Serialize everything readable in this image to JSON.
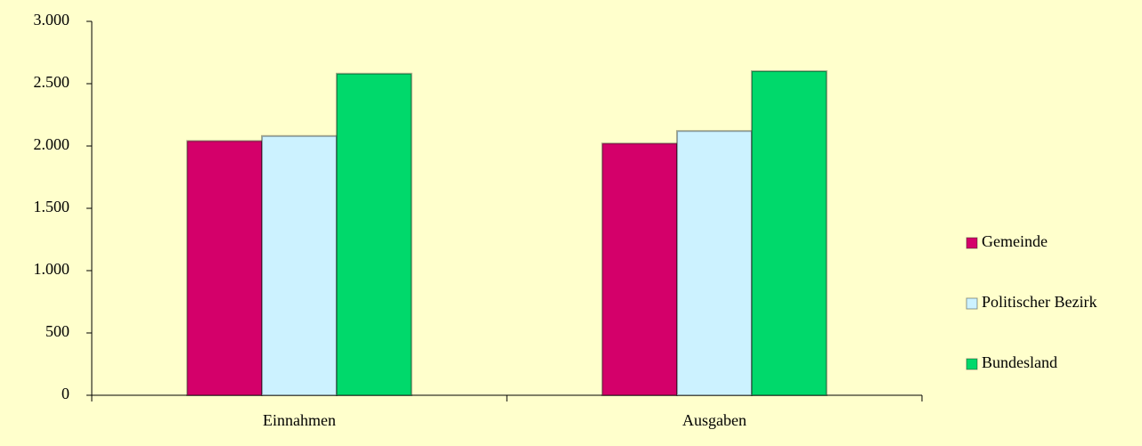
{
  "chart_data": {
    "type": "bar",
    "categories": [
      "Einnahmen",
      "Ausgaben"
    ],
    "series": [
      {
        "name": "Gemeinde",
        "color": "#D4006A",
        "values": [
          2040,
          2020
        ]
      },
      {
        "name": "Politischer Bezirk",
        "color": "#CCF2FF",
        "values": [
          2080,
          2120
        ]
      },
      {
        "name": "Bundesland",
        "color": "#00D96B",
        "values": [
          2580,
          2600
        ]
      }
    ],
    "ylim": [
      0,
      3000
    ],
    "yticks": [
      0,
      500,
      {
        "value": 1000,
        "label": "1.000"
      },
      {
        "value": 1500,
        "label": "1.500"
      },
      {
        "value": 2000,
        "label": "2.000"
      },
      {
        "value": 2500,
        "label": "2.500"
      },
      {
        "value": 3000,
        "label": "3.000"
      }
    ],
    "legend": "right"
  }
}
